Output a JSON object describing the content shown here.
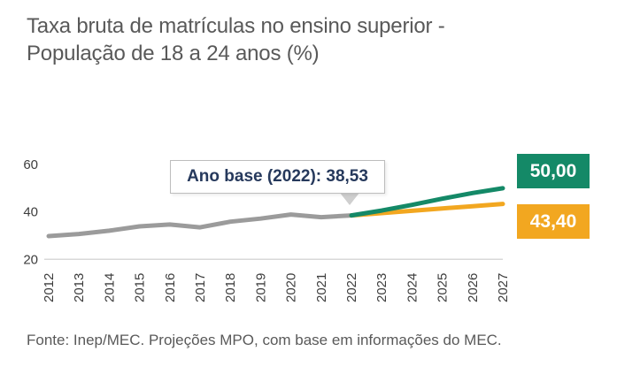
{
  "page": {
    "title_line1": "Taxa bruta de matrículas no ensino superior -",
    "title_line2": "População de 18 a 24 anos (%)",
    "source_note": "Fonte: Inep/MEC. Projeções MPO, com base em informações do MEC."
  },
  "annotation": {
    "label": "Ano base (2022): 38,53"
  },
  "end_labels": {
    "meta": "50,00",
    "tendencia": "43,40"
  },
  "colors": {
    "historical_line": "#9b9b9b",
    "meta_line": "#148967",
    "tendencia_line": "#f2a720",
    "title_text": "#595959",
    "annotation_text": "#26395c",
    "axis_text": "#3d3d3d",
    "baseline": "#d9d9d9",
    "badge_text": "#ffffff"
  },
  "chart_data": {
    "type": "line",
    "title": "Taxa bruta de matrículas no ensino superior - População de 18 a 24 anos (%)",
    "xlabel": "",
    "ylabel": "",
    "x": [
      2012,
      2013,
      2014,
      2015,
      2016,
      2017,
      2018,
      2019,
      2020,
      2021,
      2022,
      2023,
      2024,
      2025,
      2026,
      2027
    ],
    "yticks": [
      20,
      40,
      60
    ],
    "ylim": [
      20,
      62
    ],
    "grid": false,
    "baseline_y": 20,
    "legend_position": "none",
    "series": [
      {
        "name": "historical",
        "color_key": "historical_line",
        "x": [
          2012,
          2013,
          2014,
          2015,
          2016,
          2017,
          2018,
          2019,
          2020,
          2021,
          2022
        ],
        "values": [
          29.8,
          30.7,
          32.1,
          33.9,
          34.7,
          33.5,
          35.9,
          37.2,
          38.9,
          37.8,
          38.53
        ]
      },
      {
        "name": "lower_projection",
        "color_key": "tendencia_line",
        "x": [
          2022,
          2023,
          2024,
          2025,
          2026,
          2027
        ],
        "values": [
          38.53,
          39.5,
          40.5,
          41.5,
          42.4,
          43.4
        ],
        "end_label": "43,40"
      },
      {
        "name": "upper_projection",
        "color_key": "meta_line",
        "x": [
          2022,
          2023,
          2024,
          2025,
          2026,
          2027
        ],
        "values": [
          38.53,
          40.6,
          43.0,
          45.6,
          48.0,
          50.0
        ],
        "end_label": "50,00"
      }
    ],
    "annotation": {
      "text": "Ano base (2022): 38,53",
      "target_x": 2022,
      "target_y": 38.53
    }
  }
}
